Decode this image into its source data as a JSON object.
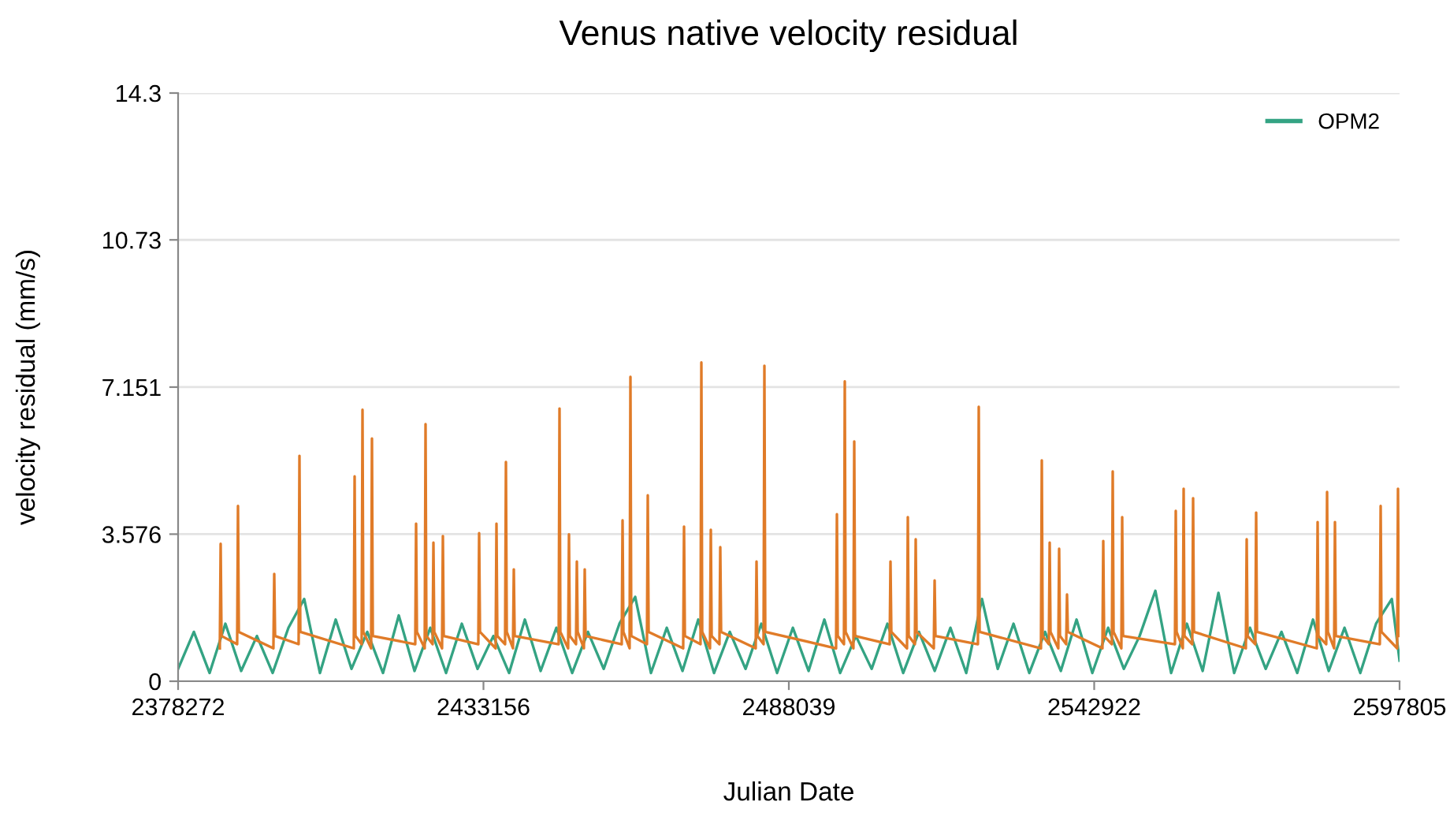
{
  "chart_data": {
    "type": "line",
    "title": "Venus native velocity residual",
    "xlabel": "Julian Date",
    "ylabel": "velocity residual (mm/s)",
    "xlim": [
      2378272,
      2597805
    ],
    "xticks": [
      2378272,
      2433156,
      2488039,
      2542922,
      2597805
    ],
    "ylim": [
      0,
      14.3
    ],
    "yticks": [
      0,
      3.576,
      7.151,
      10.73,
      14.3
    ],
    "grid": "y",
    "legend": "top right",
    "marker": "none",
    "line_style": "solid",
    "series": [
      {
        "name": "OPM2",
        "color": "#34a383",
        "x": [
          2378272,
          2381105,
          2383938,
          2386771,
          2389604,
          2392437,
          2395270,
          2398103,
          2400936,
          2403769,
          2406602,
          2409435,
          2412268,
          2415101,
          2417934,
          2420767,
          2423600,
          2426433,
          2429266,
          2432099,
          2434932,
          2437765,
          2440598,
          2443431,
          2446264,
          2449097,
          2451930,
          2454763,
          2457596,
          2460429,
          2463262,
          2466095,
          2468928,
          2471761,
          2474594,
          2477427,
          2480260,
          2483093,
          2485926,
          2488759,
          2491592,
          2494425,
          2497258,
          2500091,
          2502924,
          2505757,
          2508590,
          2511423,
          2514256,
          2517089,
          2519922,
          2522755,
          2525588,
          2528421,
          2531254,
          2534087,
          2536920,
          2539753,
          2542586,
          2545419,
          2548252,
          2551085,
          2553918,
          2556751,
          2559584,
          2562417,
          2565250,
          2568083,
          2570916,
          2573749,
          2576582,
          2579415,
          2582248,
          2585081,
          2587914,
          2590747,
          2593580,
          2596413,
          2597805
        ],
        "values": [
          0.3,
          1.2,
          0.2,
          1.4,
          0.25,
          1.1,
          0.2,
          1.3,
          2.0,
          0.2,
          1.5,
          0.3,
          1.2,
          0.2,
          1.6,
          0.25,
          1.3,
          0.2,
          1.4,
          0.3,
          1.1,
          0.2,
          1.5,
          0.25,
          1.3,
          0.2,
          1.2,
          0.3,
          1.4,
          2.05,
          0.2,
          1.3,
          0.25,
          1.5,
          0.2,
          1.2,
          0.3,
          1.4,
          0.2,
          1.3,
          0.25,
          1.5,
          0.2,
          1.1,
          0.3,
          1.4,
          0.2,
          1.2,
          0.25,
          1.3,
          0.2,
          2.0,
          0.3,
          1.4,
          0.2,
          1.2,
          0.25,
          1.5,
          0.2,
          1.3,
          0.3,
          1.1,
          2.2,
          0.2,
          1.4,
          0.25,
          2.15,
          0.2,
          1.3,
          0.3,
          1.2,
          0.2,
          1.5,
          0.25,
          1.3,
          0.2,
          1.4,
          2.0,
          0.5
        ]
      },
      {
        "color": "#e07b28",
        "x": [
          2385770,
          2385920,
          2386070,
          2388886,
          2389036,
          2389186,
          2395402,
          2395552,
          2395702,
          2399934,
          2400084,
          2400234,
          2409848,
          2409998,
          2410148,
          2411265,
          2411415,
          2411565,
          2412964,
          2413114,
          2413264,
          2420896,
          2421046,
          2421196,
          2422595,
          2422745,
          2422895,
          2424012,
          2424162,
          2424312,
          2425711,
          2425861,
          2426011,
          2432227,
          2432377,
          2432527,
          2435343,
          2435493,
          2435643,
          2437042,
          2437192,
          2437342,
          2438459,
          2438609,
          2438759,
          2446673,
          2446823,
          2446973,
          2448373,
          2448523,
          2448673,
          2449789,
          2449939,
          2450089,
          2451206,
          2451356,
          2451506,
          2458004,
          2458154,
          2458304,
          2459420,
          2459570,
          2459720,
          2462536,
          2462686,
          2462836,
          2469052,
          2469202,
          2469352,
          2472168,
          2472318,
          2472468,
          2473867,
          2474017,
          2474167,
          2475567,
          2475717,
          2475867,
          2482082,
          2482232,
          2482382,
          2483498,
          2483648,
          2483798,
          2496529,
          2496679,
          2496829,
          2497945,
          2498095,
          2498245,
          2499645,
          2499795,
          2499945,
          2506160,
          2506310,
          2506460,
          2509276,
          2509426,
          2509576,
          2510692,
          2510842,
          2510992,
          2514092,
          2514242,
          2514392,
          2522023,
          2522173,
          2522323,
          2533354,
          2533504,
          2533654,
          2534770,
          2534920,
          2535070,
          2536470,
          2536620,
          2536770,
          2537886,
          2538036,
          2538186,
          2544401,
          2544551,
          2544701,
          2546101,
          2546251,
          2546401,
          2547801,
          2547951,
          2548101,
          2557432,
          2557582,
          2557732,
          2558848,
          2558998,
          2559148,
          2560548,
          2560698,
          2560848,
          2570179,
          2570329,
          2570479,
          2571879,
          2572029,
          2572179,
          2582926,
          2583076,
          2583226,
          2584626,
          2584776,
          2584926,
          2586042,
          2586192,
          2586342,
          2594257,
          2594407,
          2594557,
          2597373,
          2597523,
          2597673
        ],
        "values": [
          0.8,
          3.34,
          1.1,
          0.9,
          4.26,
          1.2,
          0.8,
          2.61,
          1.1,
          0.9,
          5.48,
          1.2,
          0.8,
          4.98,
          1.1,
          0.9,
          6.6,
          1.2,
          0.8,
          5.9,
          1.1,
          0.9,
          3.83,
          1.2,
          0.8,
          6.25,
          1.1,
          0.9,
          3.37,
          1.2,
          0.8,
          3.53,
          1.1,
          0.9,
          3.6,
          1.2,
          0.8,
          3.83,
          1.1,
          0.9,
          5.33,
          1.2,
          0.8,
          2.72,
          1.1,
          0.9,
          6.63,
          1.2,
          0.8,
          3.57,
          1.1,
          0.9,
          2.91,
          1.2,
          0.8,
          2.72,
          1.1,
          0.9,
          3.91,
          1.2,
          0.8,
          7.4,
          1.1,
          0.9,
          4.52,
          1.2,
          0.8,
          3.76,
          1.1,
          0.9,
          7.75,
          1.2,
          0.8,
          3.68,
          1.1,
          0.9,
          3.26,
          1.2,
          0.8,
          2.91,
          1.1,
          0.9,
          7.67,
          1.2,
          0.8,
          4.06,
          1.1,
          0.9,
          7.29,
          1.2,
          0.8,
          5.83,
          1.1,
          0.9,
          2.91,
          1.2,
          0.8,
          3.99,
          1.1,
          0.9,
          3.45,
          1.2,
          0.8,
          2.45,
          1.1,
          0.9,
          6.67,
          1.2,
          0.8,
          5.37,
          1.1,
          0.9,
          3.37,
          1.2,
          0.8,
          3.22,
          1.1,
          0.9,
          2.11,
          1.2,
          0.8,
          3.41,
          1.1,
          0.9,
          5.1,
          1.2,
          0.8,
          3.99,
          1.1,
          0.9,
          4.14,
          1.2,
          0.8,
          4.68,
          1.1,
          0.9,
          4.45,
          1.2,
          0.8,
          3.45,
          1.1,
          0.9,
          4.1,
          1.2,
          0.8,
          3.87,
          1.1,
          0.9,
          4.6,
          1.2,
          0.8,
          3.87,
          1.1,
          0.9,
          4.26,
          1.2,
          0.8,
          4.68,
          1.1
        ]
      }
    ]
  }
}
